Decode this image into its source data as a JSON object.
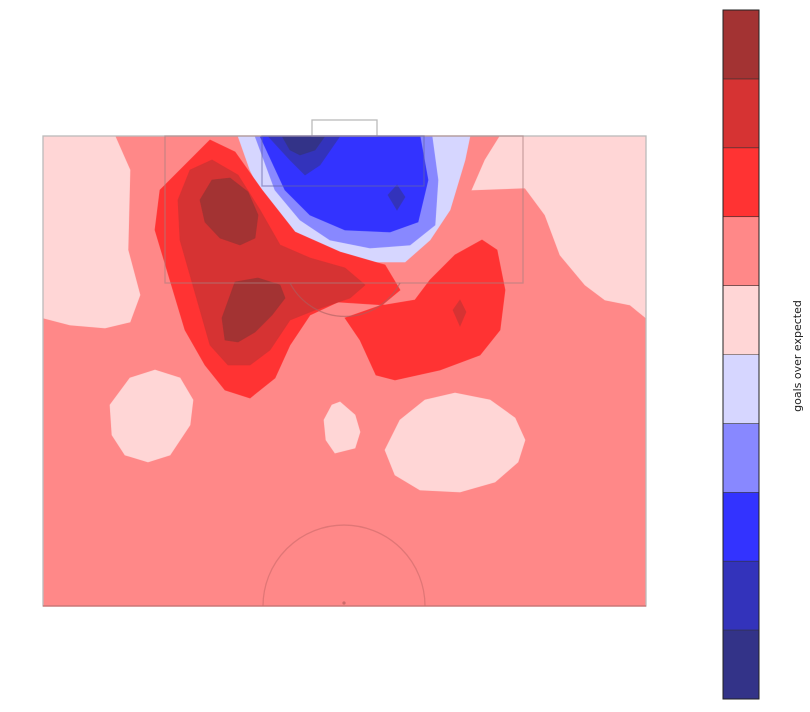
{
  "chart_data": {
    "type": "heatmap",
    "title": "",
    "xlabel": "",
    "ylabel": "",
    "description_of_surface": "filled contour of goals over expected on the attacking half of a football pitch",
    "colorbar": {
      "label": "goals over expected",
      "tick_labels": [],
      "levels": [
        {
          "index": 0,
          "color": "#333388"
        },
        {
          "index": 1,
          "color": "#3333bb"
        },
        {
          "index": 2,
          "color": "#3333ff"
        },
        {
          "index": 3,
          "color": "#8888ff"
        },
        {
          "index": 4,
          "color": "#d6d6ff"
        },
        {
          "index": 5,
          "color": "#ffd6d6"
        },
        {
          "index": 6,
          "color": "#ff8888"
        },
        {
          "index": 7,
          "color": "#ff3333"
        },
        {
          "index": 8,
          "color": "#d63333"
        },
        {
          "index": 9,
          "color": "#a33333"
        }
      ]
    },
    "regions": [
      {
        "name": "left-flank-light",
        "level": 5
      },
      {
        "name": "right-flank-light",
        "level": 5
      },
      {
        "name": "near-post-blue-light",
        "level": 4
      },
      {
        "name": "near-post-blue-mid",
        "level": 3
      },
      {
        "name": "near-post-blue",
        "level": 2
      },
      {
        "name": "near-post-blue-dark",
        "level": 1
      },
      {
        "name": "near-post-blue-darkest",
        "level": 0
      },
      {
        "name": "left-box-red",
        "level": 7
      },
      {
        "name": "left-box-darker",
        "level": 8
      },
      {
        "name": "left-box-darkest",
        "level": 9
      },
      {
        "name": "right-box-red",
        "level": 7
      },
      {
        "name": "mid-left-light",
        "level": 5
      },
      {
        "name": "mid-center-light",
        "level": 5
      },
      {
        "name": "mid-right-light",
        "level": 5
      }
    ],
    "grid": false,
    "legend": "none"
  }
}
